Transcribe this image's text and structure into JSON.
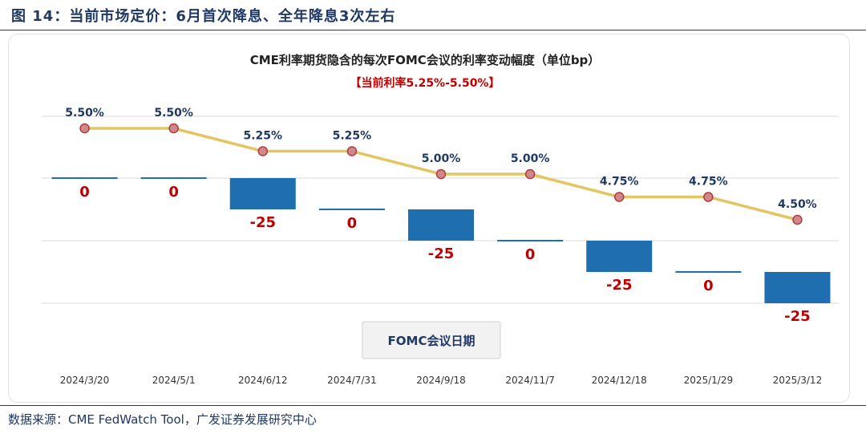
{
  "figure_title": "图 14：当前市场定价：6月首次降息、全年降息3次左右",
  "source_note": "数据来源：CME FedWatch Tool，广发证券发展研究中心",
  "colors": {
    "bar": "#1f6fb0",
    "line": "#e3c561",
    "marker": "#d0888a",
    "marker_edge": "#b23a3a",
    "bar_label": "#c00000",
    "rate_label": "#1f3864",
    "subtitle": "#c00000"
  },
  "chart_data": {
    "type": "bar+line",
    "title": "CME利率期货隐含的每次FOMC会议的利率变动幅度（单位bp）",
    "subtitle": "【当前利率5.25%-5.50%】",
    "xlabel": "FOMC会议日期",
    "categories": [
      "2024/3/20",
      "2024/5/1",
      "2024/6/12",
      "2024/7/31",
      "2024/9/18",
      "2024/11/7",
      "2024/12/18",
      "2025/1/29",
      "2025/3/12"
    ],
    "series": [
      {
        "kind": "bar",
        "values": [
          0,
          0,
          -25,
          0,
          -25,
          0,
          -25,
          0,
          -25
        ],
        "labels": [
          "0",
          "0",
          "-25",
          "0",
          "-25",
          "0",
          "-25",
          "0",
          "-25"
        ]
      },
      {
        "kind": "line",
        "values": [
          5.5,
          5.5,
          5.25,
          5.25,
          5.0,
          5.0,
          4.75,
          4.75,
          4.5
        ],
        "labels": [
          "5.50%",
          "5.50%",
          "5.25%",
          "5.25%",
          "5.00%",
          "5.00%",
          "4.75%",
          "4.75%",
          "4.50%"
        ]
      }
    ],
    "grid": true,
    "legend": "none"
  }
}
